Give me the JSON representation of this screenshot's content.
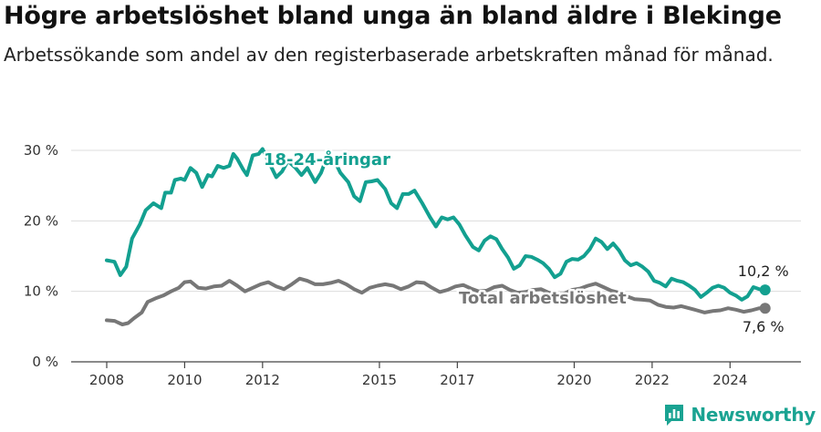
{
  "header": {
    "title": "Högre arbetslöshet bland unga än bland äldre i Blekinge",
    "subtitle": "Arbetssökande som andel av den registerbaserade arbetskraften månad för månad."
  },
  "brand": {
    "name": "Newsworthy"
  },
  "colors": {
    "youth": "#13a090",
    "total": "#777777",
    "grid": "#dddddd",
    "brand": "#1aa392"
  },
  "chart_data": {
    "type": "line",
    "ylim": [
      0,
      30
    ],
    "xlim": [
      2008,
      2025
    ],
    "y_ticks": [
      {
        "value": 0,
        "label": "0 %"
      },
      {
        "value": 10,
        "label": "10 %"
      },
      {
        "value": 20,
        "label": "20 %"
      },
      {
        "value": 30,
        "label": "30 %"
      }
    ],
    "x_ticks": [
      {
        "value": 2008,
        "label": "2008"
      },
      {
        "value": 2010,
        "label": "2010"
      },
      {
        "value": 2012,
        "label": "2012"
      },
      {
        "value": 2015,
        "label": "2015"
      },
      {
        "value": 2017,
        "label": "2017"
      },
      {
        "value": 2020,
        "label": "2020"
      },
      {
        "value": 2022,
        "label": "2022"
      },
      {
        "value": 2024,
        "label": "2024"
      }
    ],
    "grid": true,
    "series": [
      {
        "name": "18-24-åringar",
        "color": "#13a090",
        "end_label": "10,2 %",
        "points": [
          [
            2008.0,
            14.4
          ],
          [
            2008.2,
            14.2
          ],
          [
            2008.35,
            12.3
          ],
          [
            2008.5,
            13.5
          ],
          [
            2008.65,
            17.5
          ],
          [
            2008.85,
            19.5
          ],
          [
            2009.0,
            21.5
          ],
          [
            2009.2,
            22.5
          ],
          [
            2009.4,
            21.8
          ],
          [
            2009.5,
            24.0
          ],
          [
            2009.65,
            24.0
          ],
          [
            2009.75,
            25.8
          ],
          [
            2009.9,
            26.0
          ],
          [
            2010.0,
            25.8
          ],
          [
            2010.15,
            27.5
          ],
          [
            2010.3,
            26.8
          ],
          [
            2010.45,
            24.8
          ],
          [
            2010.6,
            26.5
          ],
          [
            2010.7,
            26.3
          ],
          [
            2010.85,
            27.8
          ],
          [
            2011.0,
            27.5
          ],
          [
            2011.15,
            27.8
          ],
          [
            2011.25,
            29.5
          ],
          [
            2011.35,
            28.8
          ],
          [
            2011.5,
            27.3
          ],
          [
            2011.6,
            26.5
          ],
          [
            2011.75,
            29.3
          ],
          [
            2011.9,
            29.5
          ],
          [
            2012.0,
            30.2
          ],
          [
            2012.15,
            28.5
          ],
          [
            2012.35,
            26.2
          ],
          [
            2012.5,
            27.0
          ],
          [
            2012.65,
            28.5
          ],
          [
            2012.85,
            27.5
          ],
          [
            2013.0,
            26.5
          ],
          [
            2013.15,
            27.5
          ],
          [
            2013.35,
            25.5
          ],
          [
            2013.5,
            26.8
          ],
          [
            2013.65,
            29.0
          ],
          [
            2013.85,
            28.5
          ],
          [
            2014.0,
            26.8
          ],
          [
            2014.2,
            25.5
          ],
          [
            2014.35,
            23.5
          ],
          [
            2014.5,
            22.8
          ],
          [
            2014.65,
            25.5
          ],
          [
            2014.8,
            25.6
          ],
          [
            2014.95,
            25.8
          ],
          [
            2015.15,
            24.5
          ],
          [
            2015.3,
            22.5
          ],
          [
            2015.45,
            21.8
          ],
          [
            2015.6,
            23.8
          ],
          [
            2015.75,
            23.8
          ],
          [
            2015.9,
            24.3
          ],
          [
            2016.1,
            22.5
          ],
          [
            2016.3,
            20.5
          ],
          [
            2016.45,
            19.2
          ],
          [
            2016.6,
            20.5
          ],
          [
            2016.75,
            20.2
          ],
          [
            2016.9,
            20.5
          ],
          [
            2017.05,
            19.5
          ],
          [
            2017.2,
            18.0
          ],
          [
            2017.4,
            16.3
          ],
          [
            2017.55,
            15.8
          ],
          [
            2017.7,
            17.2
          ],
          [
            2017.85,
            17.8
          ],
          [
            2018.0,
            17.4
          ],
          [
            2018.15,
            16.0
          ],
          [
            2018.3,
            14.8
          ],
          [
            2018.45,
            13.2
          ],
          [
            2018.6,
            13.7
          ],
          [
            2018.75,
            15.0
          ],
          [
            2018.9,
            14.9
          ],
          [
            2019.05,
            14.5
          ],
          [
            2019.2,
            14.0
          ],
          [
            2019.35,
            13.2
          ],
          [
            2019.5,
            12.0
          ],
          [
            2019.65,
            12.5
          ],
          [
            2019.8,
            14.2
          ],
          [
            2019.95,
            14.6
          ],
          [
            2020.1,
            14.5
          ],
          [
            2020.25,
            15.0
          ],
          [
            2020.4,
            16.0
          ],
          [
            2020.55,
            17.5
          ],
          [
            2020.7,
            17.0
          ],
          [
            2020.85,
            16.0
          ],
          [
            2021.0,
            16.8
          ],
          [
            2021.15,
            15.8
          ],
          [
            2021.3,
            14.4
          ],
          [
            2021.45,
            13.7
          ],
          [
            2021.6,
            14.0
          ],
          [
            2021.75,
            13.5
          ],
          [
            2021.9,
            12.8
          ],
          [
            2022.05,
            11.5
          ],
          [
            2022.2,
            11.2
          ],
          [
            2022.35,
            10.7
          ],
          [
            2022.5,
            11.8
          ],
          [
            2022.65,
            11.5
          ],
          [
            2022.8,
            11.3
          ],
          [
            2022.95,
            10.8
          ],
          [
            2023.1,
            10.2
          ],
          [
            2023.25,
            9.2
          ],
          [
            2023.4,
            9.8
          ],
          [
            2023.55,
            10.5
          ],
          [
            2023.7,
            10.8
          ],
          [
            2023.85,
            10.5
          ],
          [
            2024.0,
            9.8
          ],
          [
            2024.15,
            9.4
          ],
          [
            2024.3,
            8.8
          ],
          [
            2024.45,
            9.3
          ],
          [
            2024.6,
            10.6
          ],
          [
            2024.75,
            10.3
          ],
          [
            2024.9,
            10.2
          ]
        ]
      },
      {
        "name": "Total arbetslöshet",
        "color": "#777777",
        "end_label": "7,6 %",
        "points": [
          [
            2008.0,
            5.9
          ],
          [
            2008.2,
            5.8
          ],
          [
            2008.4,
            5.3
          ],
          [
            2008.55,
            5.5
          ],
          [
            2008.7,
            6.2
          ],
          [
            2008.9,
            7.0
          ],
          [
            2009.05,
            8.5
          ],
          [
            2009.25,
            9.0
          ],
          [
            2009.45,
            9.4
          ],
          [
            2009.65,
            10.0
          ],
          [
            2009.85,
            10.5
          ],
          [
            2010.0,
            11.3
          ],
          [
            2010.15,
            11.4
          ],
          [
            2010.35,
            10.5
          ],
          [
            2010.55,
            10.4
          ],
          [
            2010.75,
            10.7
          ],
          [
            2010.95,
            10.8
          ],
          [
            2011.15,
            11.5
          ],
          [
            2011.35,
            10.8
          ],
          [
            2011.55,
            10.0
          ],
          [
            2011.75,
            10.5
          ],
          [
            2011.95,
            11.0
          ],
          [
            2012.15,
            11.3
          ],
          [
            2012.35,
            10.7
          ],
          [
            2012.55,
            10.3
          ],
          [
            2012.75,
            11.0
          ],
          [
            2012.95,
            11.8
          ],
          [
            2013.15,
            11.5
          ],
          [
            2013.35,
            11.0
          ],
          [
            2013.55,
            11.0
          ],
          [
            2013.75,
            11.2
          ],
          [
            2013.95,
            11.5
          ],
          [
            2014.15,
            11.0
          ],
          [
            2014.35,
            10.3
          ],
          [
            2014.55,
            9.8
          ],
          [
            2014.75,
            10.5
          ],
          [
            2014.95,
            10.8
          ],
          [
            2015.15,
            11.0
          ],
          [
            2015.35,
            10.8
          ],
          [
            2015.55,
            10.3
          ],
          [
            2015.75,
            10.7
          ],
          [
            2015.95,
            11.3
          ],
          [
            2016.15,
            11.2
          ],
          [
            2016.35,
            10.5
          ],
          [
            2016.55,
            9.9
          ],
          [
            2016.75,
            10.2
          ],
          [
            2016.95,
            10.7
          ],
          [
            2017.15,
            10.9
          ],
          [
            2017.35,
            10.4
          ],
          [
            2017.55,
            10.0
          ],
          [
            2017.75,
            10.1
          ],
          [
            2017.95,
            10.6
          ],
          [
            2018.15,
            10.8
          ],
          [
            2018.35,
            10.2
          ],
          [
            2018.55,
            9.8
          ],
          [
            2018.75,
            9.9
          ],
          [
            2018.95,
            10.2
          ],
          [
            2019.15,
            10.3
          ],
          [
            2019.35,
            9.8
          ],
          [
            2019.55,
            9.5
          ],
          [
            2019.75,
            9.7
          ],
          [
            2019.95,
            10.2
          ],
          [
            2020.15,
            10.4
          ],
          [
            2020.35,
            10.8
          ],
          [
            2020.55,
            11.1
          ],
          [
            2020.75,
            10.6
          ],
          [
            2020.95,
            10.1
          ],
          [
            2021.15,
            9.8
          ],
          [
            2021.35,
            9.3
          ],
          [
            2021.55,
            8.9
          ],
          [
            2021.75,
            8.8
          ],
          [
            2021.95,
            8.7
          ],
          [
            2022.15,
            8.1
          ],
          [
            2022.35,
            7.8
          ],
          [
            2022.55,
            7.7
          ],
          [
            2022.75,
            7.9
          ],
          [
            2022.95,
            7.6
          ],
          [
            2023.15,
            7.3
          ],
          [
            2023.35,
            7.0
          ],
          [
            2023.55,
            7.2
          ],
          [
            2023.75,
            7.3
          ],
          [
            2023.95,
            7.6
          ],
          [
            2024.15,
            7.4
          ],
          [
            2024.35,
            7.1
          ],
          [
            2024.55,
            7.3
          ],
          [
            2024.75,
            7.6
          ],
          [
            2024.9,
            7.6
          ]
        ]
      }
    ]
  }
}
